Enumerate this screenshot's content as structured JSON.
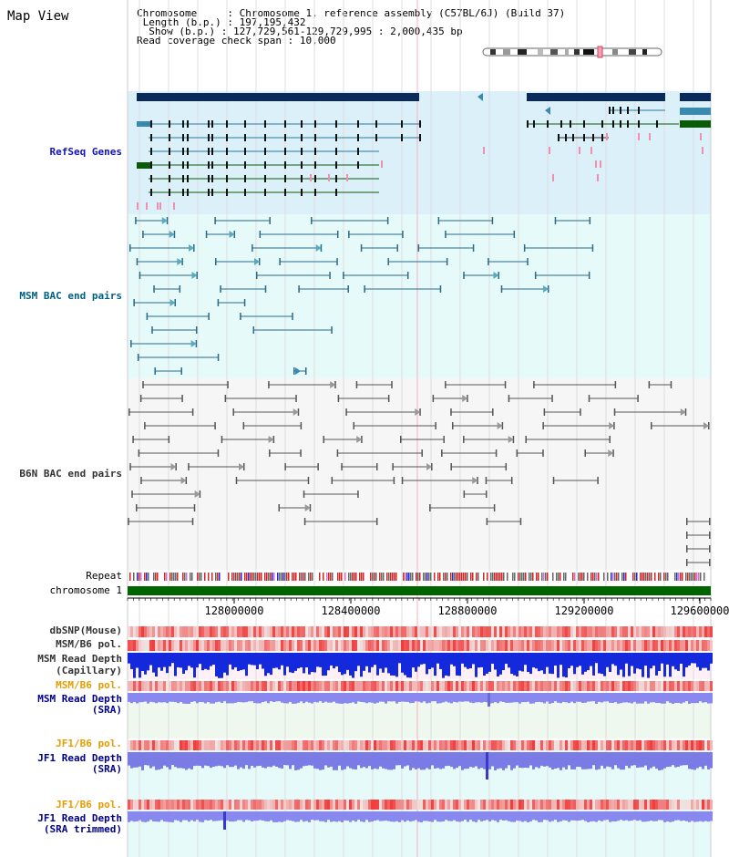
{
  "title": "Map View",
  "info": {
    "chromosome_key": "Chromosome",
    "chromosome_val": "Chromosome 1, reference assembly (C57BL/6J) (Build 37)",
    "length_key": "Length (b.p.)",
    "length_val": "197,195,432",
    "show_key": "Show (b.p.)",
    "show_val": "127,729,561-129,729,995 : 2,000,435 bp",
    "span_key": "Read coverage check span",
    "span_val": "10,000"
  },
  "tracks": {
    "refseq": "RefSeq Genes",
    "msm_bac": "MSM BAC end pairs",
    "b6n_bac": "B6N BAC end pairs",
    "repeat": "Repeat",
    "chromosome": "chromosome 1",
    "dbsnp": "dbSNP(Mouse)",
    "msm_b6_pol": "MSM/B6 pol.",
    "msm_read_depth_cap_1": "MSM Read Depth",
    "msm_read_depth_cap_2": "(Capillary)",
    "msm_b6_pol_2": "MSM/B6 pol.",
    "msm_read_depth_sra_1": "MSM Read Depth",
    "msm_read_depth_sra_2": "(SRA)",
    "jf1_b6_pol": "JF1/B6 pol.",
    "jf1_read_depth_1": "JF1 Read Depth",
    "jf1_read_depth_2": "(SRA)",
    "jf1_b6_pol_2": "JF1/B6 pol.",
    "jf1_trim_1": "JF1 Read Depth",
    "jf1_trim_2": "(SRA trimmed)"
  },
  "axis": {
    "ticks": [
      "128000000",
      "128400000",
      "128800000",
      "129200000",
      "129600000"
    ],
    "range": [
      127729561,
      129729995
    ]
  },
  "colors": {
    "refseq_bg": "#dcf0fa",
    "msm_bg": "#e6fafa",
    "gene_navy": "#0a2a5a",
    "gene_teal": "#2a7a9a",
    "gene_green": "#0a5a0a",
    "chromosome_bar": "#006400",
    "read_blue": "#1428dc",
    "read_lavender": "#7b7be6",
    "pol_red": "#f04040"
  }
}
